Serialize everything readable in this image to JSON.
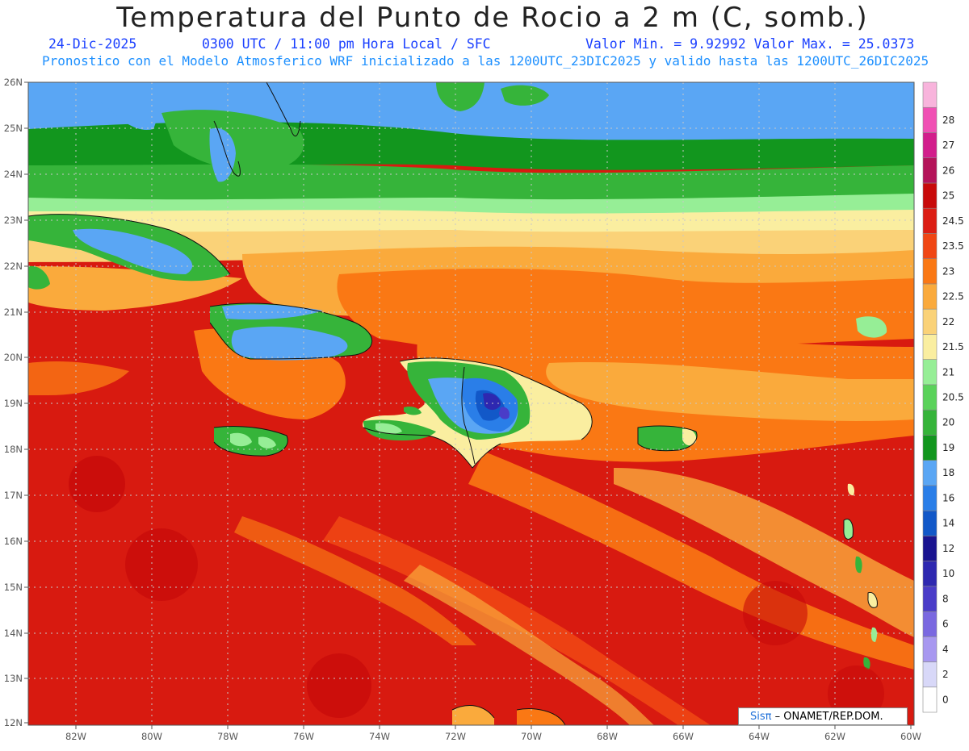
{
  "header": {
    "title": "Temperatura del Punto de Rocio a 2 m (C, somb.)",
    "date": "24-Dic-2025",
    "time": "0300 UTC / 11:00 pm Hora Local / SFC",
    "minmax": "Valor Min. = 9.92992  Valor Max. = 25.0373",
    "model": "Pronostico con el Modelo Atmosferico WRF inicializado a las 1200UTC_23DIC2025 y valido hasta las  1200UTC_26DIC2025"
  },
  "map": {
    "lat_labels": [
      "26N",
      "25N",
      "24N",
      "23N",
      "22N",
      "21N",
      "20N",
      "19N",
      "18N",
      "17N",
      "16N",
      "15N",
      "14N",
      "13N",
      "12N"
    ],
    "lon_labels": [
      "82W",
      "80W",
      "78W",
      "76W",
      "74W",
      "72W",
      "70W",
      "68W",
      "66W",
      "64W",
      "62W",
      "60W"
    ]
  },
  "colorbar": {
    "levels": [
      "0",
      "2",
      "4",
      "6",
      "8",
      "10",
      "12",
      "14",
      "16",
      "18",
      "19",
      "20",
      "20.5",
      "21",
      "21.5",
      "22",
      "22.5",
      "23",
      "23.5",
      "24.5",
      "25",
      "26",
      "27",
      "28"
    ],
    "colors": [
      "#ffffff",
      "#d8d8f8",
      "#a898f0",
      "#7a68e0",
      "#4a3cc8",
      "#2e28b0",
      "#1a1490",
      "#1258c8",
      "#2a7ee8",
      "#5aa6f4",
      "#12961e",
      "#36b43a",
      "#5ad25a",
      "#96ee96",
      "#faeea0",
      "#fad278",
      "#faaa3c",
      "#fa7814",
      "#f04614",
      "#dc1e14",
      "#c80a0a",
      "#b4145a",
      "#d21e8c",
      "#f050b4",
      "#f8b4dc"
    ]
  },
  "credit": {
    "logo": "Sisπ",
    "text": "– ONAMET/REP.DOM."
  }
}
